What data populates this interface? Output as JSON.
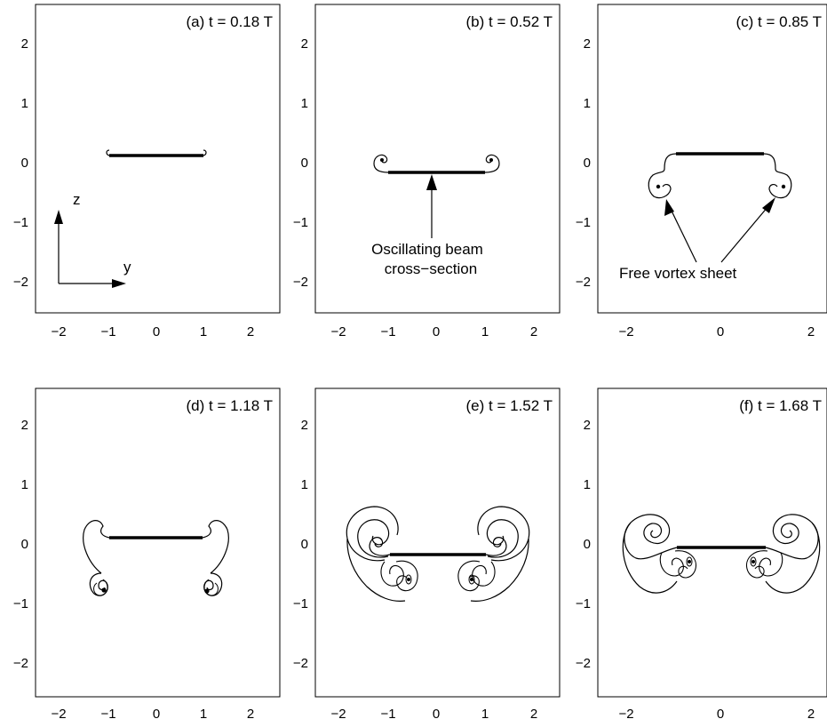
{
  "figure": {
    "panels": [
      {
        "id": "a",
        "title": "(a) t = 0.18 T",
        "yticks": [
          "2",
          "1",
          "0",
          "−1",
          "−2"
        ],
        "xticks": [
          "−2",
          "−1",
          "0",
          "1",
          "2"
        ],
        "beam_z": 0.1,
        "beam_half_width": 1.0,
        "vortex_stage": 0
      },
      {
        "id": "b",
        "title": "(b) t = 0.52 T",
        "yticks": [
          "2",
          "1",
          "0",
          "−1",
          "−2"
        ],
        "xticks": [
          "−2",
          "−1",
          "0",
          "1",
          "2"
        ],
        "beam_z": -0.2,
        "beam_half_width": 1.0,
        "vortex_stage": 1
      },
      {
        "id": "c",
        "title": "(c) t = 0.85 T",
        "yticks": [
          "2",
          "1",
          "0",
          "−1",
          "−2"
        ],
        "xticks": [
          "−2",
          "0",
          "2"
        ],
        "beam_z": 0.12,
        "beam_half_width": 1.0,
        "vortex_stage": 2
      },
      {
        "id": "d",
        "title": "(d) t = 1.18 T",
        "yticks": [
          "2",
          "1",
          "0",
          "−1",
          "−2"
        ],
        "xticks": [
          "−2",
          "−1",
          "0",
          "1",
          "2"
        ],
        "beam_z": 0.1,
        "beam_half_width": 1.0,
        "vortex_stage": 3
      },
      {
        "id": "e",
        "title": "(e) t = 1.52 T",
        "yticks": [
          "2",
          "1",
          "0",
          "−1",
          "−2"
        ],
        "xticks": [
          "−2",
          "−1",
          "0",
          "1",
          "2"
        ],
        "beam_z": -0.2,
        "beam_half_width": 1.0,
        "vortex_stage": 4
      },
      {
        "id": "f",
        "title": "(f) t = 1.68 T",
        "yticks": [
          "2",
          "1",
          "0",
          "−1",
          "−2"
        ],
        "xticks": [
          "−2",
          "0",
          "2"
        ],
        "beam_z": -0.05,
        "beam_half_width": 1.0,
        "vortex_stage": 5
      }
    ],
    "axis_indicator": {
      "z_label": "z",
      "y_label": "y"
    },
    "annotations": {
      "beam_label_line1": "Oscillating beam",
      "beam_label_line2": "cross−section",
      "sheet_label": "Free vortex sheet"
    }
  },
  "colors": {
    "line": "#000000",
    "background": "#ffffff"
  }
}
